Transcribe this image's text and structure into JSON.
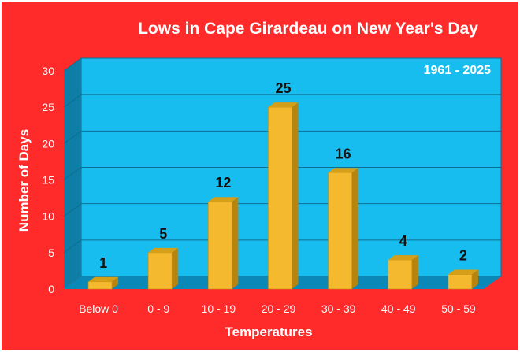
{
  "colors": {
    "background": "#ff2a2a",
    "plot_back": "#18bdf0",
    "plot_side": "#0e7ea6",
    "plot_floor": "#0a88b8",
    "bar_front": "#f4b92e",
    "bar_top": "#d59f18",
    "bar_side": "#b7840e",
    "text_light": "#ffffff",
    "text_dark": "#111111"
  },
  "chart_data": {
    "type": "bar",
    "title": "Lows in Cape Girardeau on New Year's Day",
    "annotation": "1961 - 2025",
    "xlabel": "Temperatures",
    "ylabel": "Number of Days",
    "categories": [
      "Below 0",
      "0 - 9",
      "10 - 19",
      "20 - 29",
      "30 - 39",
      "40 - 49",
      "50 - 59"
    ],
    "values": [
      1,
      5,
      12,
      25,
      16,
      4,
      2
    ],
    "ylim": [
      0,
      30
    ],
    "yticks": [
      "0",
      "5",
      "10",
      "15",
      "20",
      "25",
      "30"
    ],
    "data_labels": [
      "1",
      "5",
      "12",
      "25",
      "16",
      "4",
      "2"
    ],
    "grid": true,
    "legend": "none",
    "style": "3d"
  }
}
